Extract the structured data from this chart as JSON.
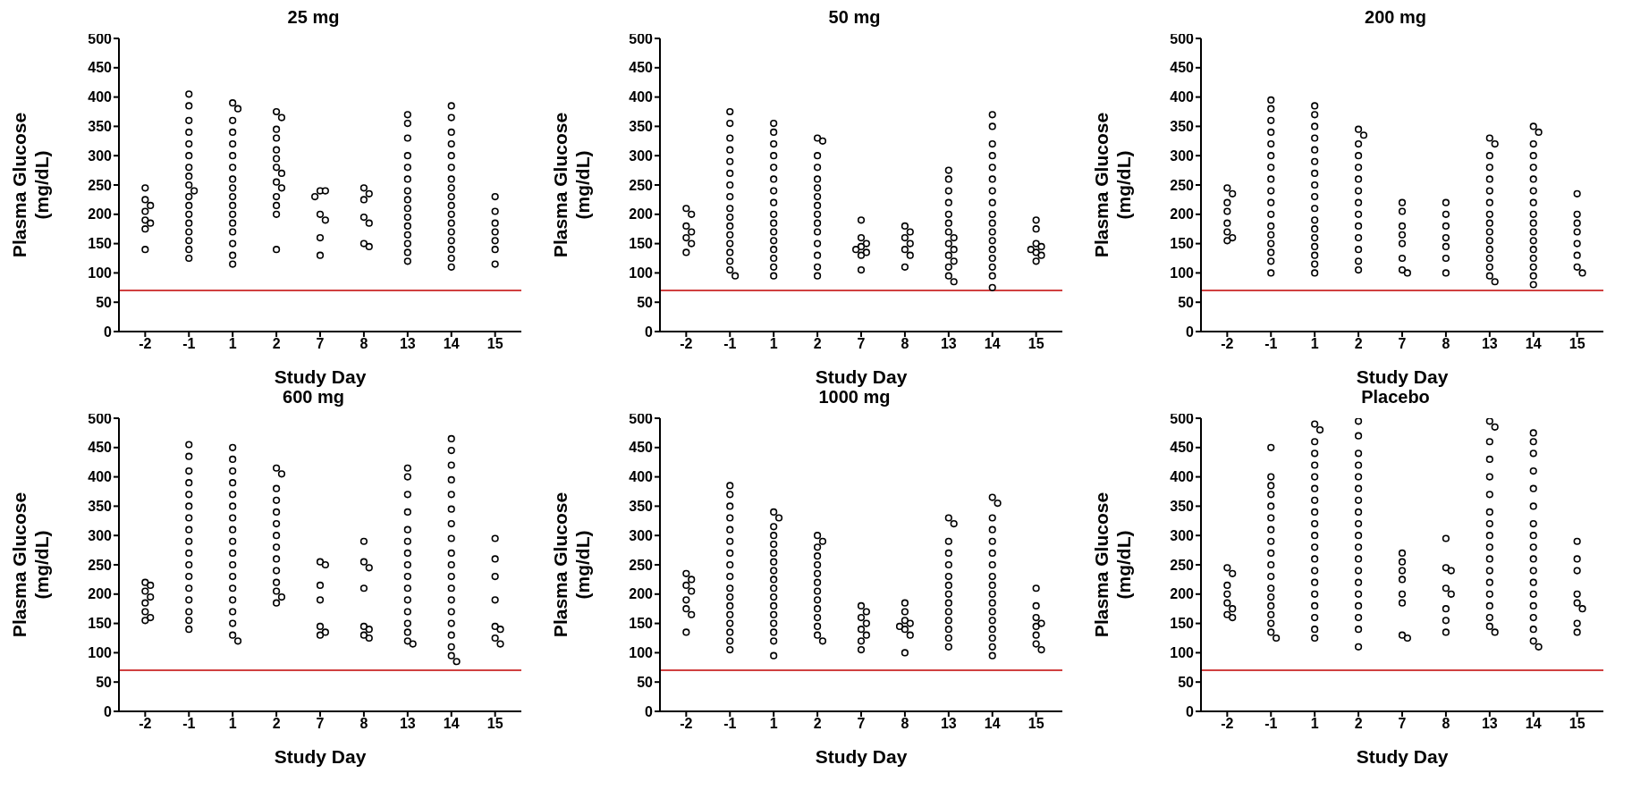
{
  "chart_data": [
    {
      "type": "scatter",
      "title": "25 mg",
      "xlabel": "Study Day",
      "ylabel": "Plasma Glucose (mg/dL)",
      "categories": [
        "-2",
        "-1",
        "1",
        "2",
        "7",
        "8",
        "13",
        "14",
        "15"
      ],
      "ylim": [
        0,
        500
      ],
      "yticks": [
        0,
        50,
        100,
        150,
        200,
        250,
        300,
        350,
        400,
        450,
        500
      ],
      "marker": "circle",
      "ref_lines": [
        {
          "axis": "y",
          "value": 70,
          "color": "#c00000"
        }
      ],
      "series": [
        {
          "color": "#000000",
          "x": [
            "-2",
            "-2",
            "-2",
            "-2",
            "-2",
            "-2",
            "-2",
            "-2"
          ],
          "values": [
            245,
            225,
            215,
            205,
            190,
            185,
            175,
            140
          ]
        },
        {
          "color": "#000000",
          "x": [
            "-1",
            "-1",
            "-1",
            "-1",
            "-1",
            "-1",
            "-1",
            "-1",
            "-1",
            "-1",
            "-1",
            "-1",
            "-1",
            "-1",
            "-1",
            "-1",
            "-1",
            "-1"
          ],
          "values": [
            405,
            385,
            360,
            340,
            320,
            300,
            280,
            265,
            250,
            240,
            230,
            215,
            200,
            185,
            170,
            155,
            140,
            125
          ]
        },
        {
          "color": "#000000",
          "x": [
            "1",
            "1",
            "1",
            "1",
            "1",
            "1",
            "1",
            "1",
            "1",
            "1",
            "1",
            "1",
            "1",
            "1",
            "1",
            "1",
            "1"
          ],
          "values": [
            390,
            380,
            360,
            340,
            320,
            300,
            280,
            260,
            245,
            230,
            215,
            200,
            185,
            170,
            150,
            130,
            115
          ]
        },
        {
          "color": "#000000",
          "x": [
            "2",
            "2",
            "2",
            "2",
            "2",
            "2",
            "2",
            "2",
            "2",
            "2",
            "2",
            "2",
            "2",
            "2"
          ],
          "values": [
            375,
            365,
            345,
            330,
            310,
            295,
            280,
            270,
            255,
            245,
            230,
            215,
            200,
            140
          ]
        },
        {
          "color": "#000000",
          "x": [
            "7",
            "7",
            "7",
            "7",
            "7",
            "7",
            "7"
          ],
          "values": [
            240,
            240,
            230,
            200,
            190,
            160,
            130
          ]
        },
        {
          "color": "#000000",
          "x": [
            "8",
            "8",
            "8",
            "8",
            "8",
            "8",
            "8"
          ],
          "values": [
            245,
            235,
            225,
            195,
            185,
            150,
            145
          ]
        },
        {
          "color": "#000000",
          "x": [
            "13",
            "13",
            "13",
            "13",
            "13",
            "13",
            "13",
            "13",
            "13",
            "13",
            "13",
            "13",
            "13",
            "13",
            "13"
          ],
          "values": [
            370,
            355,
            330,
            300,
            280,
            260,
            240,
            225,
            210,
            195,
            180,
            165,
            150,
            135,
            120
          ]
        },
        {
          "color": "#000000",
          "x": [
            "14",
            "14",
            "14",
            "14",
            "14",
            "14",
            "14",
            "14",
            "14",
            "14",
            "14",
            "14",
            "14",
            "14",
            "14",
            "14",
            "14"
          ],
          "values": [
            385,
            365,
            340,
            320,
            300,
            280,
            260,
            245,
            230,
            215,
            200,
            185,
            170,
            155,
            140,
            125,
            110
          ]
        },
        {
          "color": "#000000",
          "x": [
            "15",
            "15",
            "15",
            "15",
            "15",
            "15",
            "15"
          ],
          "values": [
            230,
            205,
            185,
            170,
            155,
            140,
            115
          ]
        }
      ]
    },
    {
      "type": "scatter",
      "title": "50 mg",
      "xlabel": "Study Day",
      "ylabel": "Plasma Glucose (mg/dL)",
      "categories": [
        "-2",
        "-1",
        "1",
        "2",
        "7",
        "8",
        "13",
        "14",
        "15"
      ],
      "ylim": [
        0,
        500
      ],
      "yticks": [
        0,
        50,
        100,
        150,
        200,
        250,
        300,
        350,
        400,
        450,
        500
      ],
      "marker": "circle",
      "ref_lines": [
        {
          "axis": "y",
          "value": 70,
          "color": "#c00000"
        }
      ],
      "series": [
        {
          "color": "#000000",
          "x": [
            "-2",
            "-2",
            "-2",
            "-2",
            "-2",
            "-2",
            "-2"
          ],
          "values": [
            210,
            200,
            180,
            170,
            160,
            150,
            135
          ]
        },
        {
          "color": "#000000",
          "x": [
            "-1",
            "-1",
            "-1",
            "-1",
            "-1",
            "-1",
            "-1",
            "-1",
            "-1",
            "-1",
            "-1",
            "-1",
            "-1",
            "-1",
            "-1",
            "-1",
            "-1"
          ],
          "values": [
            375,
            355,
            330,
            310,
            290,
            270,
            250,
            230,
            210,
            195,
            180,
            165,
            150,
            135,
            120,
            105,
            95
          ]
        },
        {
          "color": "#000000",
          "x": [
            "1",
            "1",
            "1",
            "1",
            "1",
            "1",
            "1",
            "1",
            "1",
            "1",
            "1",
            "1",
            "1",
            "1",
            "1",
            "1"
          ],
          "values": [
            355,
            340,
            320,
            300,
            280,
            260,
            240,
            220,
            200,
            185,
            170,
            155,
            140,
            125,
            110,
            95
          ]
        },
        {
          "color": "#000000",
          "x": [
            "2",
            "2",
            "2",
            "2",
            "2",
            "2",
            "2",
            "2",
            "2",
            "2",
            "2",
            "2",
            "2",
            "2",
            "2"
          ],
          "values": [
            330,
            325,
            300,
            280,
            260,
            245,
            230,
            215,
            200,
            185,
            170,
            150,
            130,
            110,
            95
          ]
        },
        {
          "color": "#000000",
          "x": [
            "7",
            "7",
            "7",
            "7",
            "7",
            "7",
            "7",
            "7"
          ],
          "values": [
            190,
            160,
            150,
            145,
            140,
            135,
            130,
            105
          ]
        },
        {
          "color": "#000000",
          "x": [
            "8",
            "8",
            "8",
            "8",
            "8",
            "8",
            "8"
          ],
          "values": [
            180,
            170,
            160,
            150,
            140,
            130,
            110
          ]
        },
        {
          "color": "#000000",
          "x": [
            "13",
            "13",
            "13",
            "13",
            "13",
            "13",
            "13",
            "13",
            "13",
            "13",
            "13",
            "13",
            "13",
            "13",
            "13"
          ],
          "values": [
            275,
            260,
            240,
            220,
            200,
            185,
            170,
            160,
            150,
            140,
            130,
            120,
            110,
            95,
            85
          ]
        },
        {
          "color": "#000000",
          "x": [
            "14",
            "14",
            "14",
            "14",
            "14",
            "14",
            "14",
            "14",
            "14",
            "14",
            "14",
            "14",
            "14",
            "14",
            "14",
            "14",
            "14"
          ],
          "values": [
            370,
            350,
            320,
            300,
            280,
            260,
            240,
            220,
            200,
            185,
            170,
            155,
            140,
            125,
            110,
            95,
            75
          ]
        },
        {
          "color": "#000000",
          "x": [
            "15",
            "15",
            "15",
            "15",
            "15",
            "15",
            "15",
            "15"
          ],
          "values": [
            190,
            175,
            150,
            145,
            140,
            135,
            130,
            120
          ]
        }
      ]
    },
    {
      "type": "scatter",
      "title": "200 mg",
      "xlabel": "Study Day",
      "ylabel": "Plasma Glucose (mg/dL)",
      "categories": [
        "-2",
        "-1",
        "1",
        "2",
        "7",
        "8",
        "13",
        "14",
        "15"
      ],
      "ylim": [
        0,
        500
      ],
      "yticks": [
        0,
        50,
        100,
        150,
        200,
        250,
        300,
        350,
        400,
        450,
        500
      ],
      "marker": "circle",
      "ref_lines": [
        {
          "axis": "y",
          "value": 70,
          "color": "#c00000"
        }
      ],
      "series": [
        {
          "color": "#000000",
          "x": [
            "-2",
            "-2",
            "-2",
            "-2",
            "-2",
            "-2",
            "-2",
            "-2"
          ],
          "values": [
            245,
            235,
            220,
            205,
            185,
            170,
            160,
            155
          ]
        },
        {
          "color": "#000000",
          "x": [
            "-1",
            "-1",
            "-1",
            "-1",
            "-1",
            "-1",
            "-1",
            "-1",
            "-1",
            "-1",
            "-1",
            "-1",
            "-1",
            "-1",
            "-1",
            "-1",
            "-1"
          ],
          "values": [
            395,
            380,
            360,
            340,
            320,
            300,
            280,
            260,
            240,
            220,
            200,
            180,
            165,
            150,
            135,
            120,
            100
          ]
        },
        {
          "color": "#000000",
          "x": [
            "1",
            "1",
            "1",
            "1",
            "1",
            "1",
            "1",
            "1",
            "1",
            "1",
            "1",
            "1",
            "1",
            "1",
            "1",
            "1",
            "1"
          ],
          "values": [
            385,
            370,
            350,
            330,
            310,
            290,
            270,
            250,
            230,
            210,
            190,
            175,
            160,
            145,
            130,
            115,
            100
          ]
        },
        {
          "color": "#000000",
          "x": [
            "2",
            "2",
            "2",
            "2",
            "2",
            "2",
            "2",
            "2",
            "2",
            "2",
            "2",
            "2",
            "2",
            "2"
          ],
          "values": [
            345,
            335,
            320,
            300,
            280,
            260,
            240,
            220,
            200,
            180,
            160,
            140,
            120,
            105
          ]
        },
        {
          "color": "#000000",
          "x": [
            "7",
            "7",
            "7",
            "7",
            "7",
            "7",
            "7",
            "7"
          ],
          "values": [
            220,
            205,
            180,
            165,
            150,
            125,
            105,
            100
          ]
        },
        {
          "color": "#000000",
          "x": [
            "8",
            "8",
            "8",
            "8",
            "8",
            "8",
            "8"
          ],
          "values": [
            220,
            200,
            180,
            160,
            145,
            125,
            100
          ]
        },
        {
          "color": "#000000",
          "x": [
            "13",
            "13",
            "13",
            "13",
            "13",
            "13",
            "13",
            "13",
            "13",
            "13",
            "13",
            "13",
            "13",
            "13",
            "13",
            "13"
          ],
          "values": [
            330,
            320,
            300,
            280,
            260,
            240,
            220,
            200,
            185,
            170,
            155,
            140,
            125,
            110,
            95,
            85
          ]
        },
        {
          "color": "#000000",
          "x": [
            "14",
            "14",
            "14",
            "14",
            "14",
            "14",
            "14",
            "14",
            "14",
            "14",
            "14",
            "14",
            "14",
            "14",
            "14",
            "14",
            "14"
          ],
          "values": [
            350,
            340,
            320,
            300,
            280,
            260,
            240,
            220,
            200,
            185,
            170,
            155,
            140,
            125,
            110,
            95,
            80
          ]
        },
        {
          "color": "#000000",
          "x": [
            "15",
            "15",
            "15",
            "15",
            "15",
            "15",
            "15",
            "15"
          ],
          "values": [
            235,
            200,
            185,
            170,
            150,
            130,
            110,
            100
          ]
        }
      ]
    },
    {
      "type": "scatter",
      "title": "600 mg",
      "xlabel": "Study Day",
      "ylabel": "Plasma Glucose (mg/dL)",
      "categories": [
        "-2",
        "-1",
        "1",
        "2",
        "7",
        "8",
        "13",
        "14",
        "15"
      ],
      "ylim": [
        0,
        500
      ],
      "yticks": [
        0,
        50,
        100,
        150,
        200,
        250,
        300,
        350,
        400,
        450,
        500
      ],
      "marker": "circle",
      "ref_lines": [
        {
          "axis": "y",
          "value": 70,
          "color": "#c00000"
        }
      ],
      "series": [
        {
          "color": "#000000",
          "x": [
            "-2",
            "-2",
            "-2",
            "-2",
            "-2",
            "-2",
            "-2",
            "-2"
          ],
          "values": [
            220,
            215,
            205,
            195,
            185,
            170,
            160,
            155
          ]
        },
        {
          "color": "#000000",
          "x": [
            "-1",
            "-1",
            "-1",
            "-1",
            "-1",
            "-1",
            "-1",
            "-1",
            "-1",
            "-1",
            "-1",
            "-1",
            "-1",
            "-1",
            "-1",
            "-1",
            "-1"
          ],
          "values": [
            455,
            435,
            410,
            390,
            370,
            350,
            330,
            310,
            290,
            270,
            250,
            230,
            210,
            190,
            170,
            155,
            140
          ]
        },
        {
          "color": "#000000",
          "x": [
            "1",
            "1",
            "1",
            "1",
            "1",
            "1",
            "1",
            "1",
            "1",
            "1",
            "1",
            "1",
            "1",
            "1",
            "1",
            "1",
            "1",
            "1"
          ],
          "values": [
            450,
            430,
            410,
            390,
            370,
            350,
            330,
            310,
            290,
            270,
            250,
            230,
            210,
            190,
            170,
            150,
            130,
            120
          ]
        },
        {
          "color": "#000000",
          "x": [
            "2",
            "2",
            "2",
            "2",
            "2",
            "2",
            "2",
            "2",
            "2",
            "2",
            "2",
            "2",
            "2",
            "2"
          ],
          "values": [
            415,
            405,
            380,
            360,
            340,
            320,
            300,
            280,
            260,
            240,
            220,
            205,
            195,
            185
          ]
        },
        {
          "color": "#000000",
          "x": [
            "7",
            "7",
            "7",
            "7",
            "7",
            "7",
            "7"
          ],
          "values": [
            255,
            250,
            215,
            190,
            145,
            135,
            130
          ]
        },
        {
          "color": "#000000",
          "x": [
            "8",
            "8",
            "8",
            "8",
            "8",
            "8",
            "8",
            "8"
          ],
          "values": [
            290,
            255,
            245,
            210,
            145,
            140,
            130,
            125
          ]
        },
        {
          "color": "#000000",
          "x": [
            "13",
            "13",
            "13",
            "13",
            "13",
            "13",
            "13",
            "13",
            "13",
            "13",
            "13",
            "13",
            "13",
            "13",
            "13",
            "13"
          ],
          "values": [
            415,
            400,
            370,
            340,
            310,
            290,
            270,
            250,
            230,
            210,
            190,
            170,
            150,
            135,
            120,
            115
          ]
        },
        {
          "color": "#000000",
          "x": [
            "14",
            "14",
            "14",
            "14",
            "14",
            "14",
            "14",
            "14",
            "14",
            "14",
            "14",
            "14",
            "14",
            "14",
            "14",
            "14",
            "14",
            "14",
            "14"
          ],
          "values": [
            465,
            445,
            420,
            395,
            370,
            345,
            320,
            295,
            270,
            250,
            230,
            210,
            190,
            170,
            150,
            130,
            110,
            95,
            85
          ]
        },
        {
          "color": "#000000",
          "x": [
            "15",
            "15",
            "15",
            "15",
            "15",
            "15",
            "15",
            "15"
          ],
          "values": [
            295,
            260,
            230,
            190,
            145,
            140,
            125,
            115
          ]
        }
      ]
    },
    {
      "type": "scatter",
      "title": "1000 mg",
      "xlabel": "Study Day",
      "ylabel": "Plasma Glucose (mg/dL)",
      "categories": [
        "-2",
        "-1",
        "1",
        "2",
        "7",
        "8",
        "13",
        "14",
        "15"
      ],
      "ylim": [
        0,
        500
      ],
      "yticks": [
        0,
        50,
        100,
        150,
        200,
        250,
        300,
        350,
        400,
        450,
        500
      ],
      "marker": "circle",
      "ref_lines": [
        {
          "axis": "y",
          "value": 70,
          "color": "#c00000"
        }
      ],
      "series": [
        {
          "color": "#000000",
          "x": [
            "-2",
            "-2",
            "-2",
            "-2",
            "-2",
            "-2",
            "-2",
            "-2"
          ],
          "values": [
            235,
            225,
            215,
            205,
            190,
            175,
            165,
            135
          ]
        },
        {
          "color": "#000000",
          "x": [
            "-1",
            "-1",
            "-1",
            "-1",
            "-1",
            "-1",
            "-1",
            "-1",
            "-1",
            "-1",
            "-1",
            "-1",
            "-1",
            "-1",
            "-1",
            "-1",
            "-1"
          ],
          "values": [
            385,
            370,
            350,
            330,
            310,
            290,
            270,
            250,
            230,
            210,
            195,
            180,
            165,
            150,
            135,
            120,
            105
          ]
        },
        {
          "color": "#000000",
          "x": [
            "1",
            "1",
            "1",
            "1",
            "1",
            "1",
            "1",
            "1",
            "1",
            "1",
            "1",
            "1",
            "1",
            "1",
            "1",
            "1",
            "1"
          ],
          "values": [
            340,
            330,
            315,
            300,
            285,
            270,
            255,
            240,
            225,
            210,
            195,
            180,
            165,
            150,
            135,
            120,
            95
          ]
        },
        {
          "color": "#000000",
          "x": [
            "2",
            "2",
            "2",
            "2",
            "2",
            "2",
            "2",
            "2",
            "2",
            "2",
            "2",
            "2",
            "2",
            "2"
          ],
          "values": [
            300,
            290,
            280,
            265,
            250,
            235,
            220,
            205,
            190,
            175,
            160,
            145,
            130,
            120
          ]
        },
        {
          "color": "#000000",
          "x": [
            "7",
            "7",
            "7",
            "7",
            "7",
            "7",
            "7",
            "7"
          ],
          "values": [
            180,
            170,
            160,
            150,
            140,
            130,
            120,
            105
          ]
        },
        {
          "color": "#000000",
          "x": [
            "8",
            "8",
            "8",
            "8",
            "8",
            "8",
            "8",
            "8"
          ],
          "values": [
            185,
            170,
            155,
            150,
            145,
            140,
            130,
            100
          ]
        },
        {
          "color": "#000000",
          "x": [
            "13",
            "13",
            "13",
            "13",
            "13",
            "13",
            "13",
            "13",
            "13",
            "13",
            "13",
            "13",
            "13",
            "13"
          ],
          "values": [
            330,
            320,
            290,
            270,
            250,
            230,
            215,
            200,
            185,
            170,
            155,
            140,
            125,
            110
          ]
        },
        {
          "color": "#000000",
          "x": [
            "14",
            "14",
            "14",
            "14",
            "14",
            "14",
            "14",
            "14",
            "14",
            "14",
            "14",
            "14",
            "14",
            "14",
            "14",
            "14",
            "14"
          ],
          "values": [
            365,
            355,
            330,
            310,
            290,
            270,
            250,
            230,
            215,
            200,
            185,
            170,
            155,
            140,
            125,
            110,
            95
          ]
        },
        {
          "color": "#000000",
          "x": [
            "15",
            "15",
            "15",
            "15",
            "15",
            "15",
            "15",
            "15"
          ],
          "values": [
            210,
            180,
            160,
            150,
            145,
            130,
            115,
            105
          ]
        }
      ]
    },
    {
      "type": "scatter",
      "title": "Placebo",
      "xlabel": "Study Day",
      "ylabel": "Plasma Glucose (mg/dL)",
      "categories": [
        "-2",
        "-1",
        "1",
        "2",
        "7",
        "8",
        "13",
        "14",
        "15"
      ],
      "ylim": [
        0,
        500
      ],
      "yticks": [
        0,
        50,
        100,
        150,
        200,
        250,
        300,
        350,
        400,
        450,
        500
      ],
      "marker": "circle",
      "ref_lines": [
        {
          "axis": "y",
          "value": 70,
          "color": "#c00000"
        }
      ],
      "series": [
        {
          "color": "#000000",
          "x": [
            "-2",
            "-2",
            "-2",
            "-2",
            "-2",
            "-2",
            "-2",
            "-2"
          ],
          "values": [
            245,
            235,
            215,
            200,
            185,
            175,
            165,
            160
          ]
        },
        {
          "color": "#000000",
          "x": [
            "-1",
            "-1",
            "-1",
            "-1",
            "-1",
            "-1",
            "-1",
            "-1",
            "-1",
            "-1",
            "-1",
            "-1",
            "-1",
            "-1",
            "-1",
            "-1",
            "-1",
            "-1"
          ],
          "values": [
            450,
            400,
            385,
            370,
            350,
            330,
            310,
            290,
            270,
            250,
            230,
            210,
            195,
            180,
            165,
            150,
            135,
            125
          ]
        },
        {
          "color": "#000000",
          "x": [
            "1",
            "1",
            "1",
            "1",
            "1",
            "1",
            "1",
            "1",
            "1",
            "1",
            "1",
            "1",
            "1",
            "1",
            "1",
            "1",
            "1",
            "1",
            "1",
            "1"
          ],
          "values": [
            490,
            480,
            460,
            440,
            420,
            400,
            380,
            360,
            340,
            320,
            300,
            280,
            260,
            240,
            220,
            200,
            180,
            160,
            140,
            125
          ]
        },
        {
          "color": "#000000",
          "x": [
            "2",
            "2",
            "2",
            "2",
            "2",
            "2",
            "2",
            "2",
            "2",
            "2",
            "2",
            "2",
            "2",
            "2",
            "2",
            "2",
            "2",
            "2",
            "2"
          ],
          "values": [
            495,
            470,
            440,
            420,
            400,
            380,
            360,
            340,
            320,
            300,
            280,
            260,
            240,
            220,
            200,
            180,
            160,
            140,
            110
          ]
        },
        {
          "color": "#000000",
          "x": [
            "7",
            "7",
            "7",
            "7",
            "7",
            "7",
            "7",
            "7"
          ],
          "values": [
            270,
            255,
            240,
            225,
            200,
            185,
            130,
            125
          ]
        },
        {
          "color": "#000000",
          "x": [
            "8",
            "8",
            "8",
            "8",
            "8",
            "8",
            "8",
            "8"
          ],
          "values": [
            295,
            245,
            240,
            210,
            200,
            175,
            155,
            135
          ]
        },
        {
          "color": "#000000",
          "x": [
            "13",
            "13",
            "13",
            "13",
            "13",
            "13",
            "13",
            "13",
            "13",
            "13",
            "13",
            "13",
            "13",
            "13",
            "13",
            "13",
            "13",
            "13"
          ],
          "values": [
            495,
            485,
            460,
            430,
            400,
            370,
            340,
            320,
            300,
            280,
            260,
            240,
            220,
            200,
            180,
            160,
            145,
            135
          ]
        },
        {
          "color": "#000000",
          "x": [
            "14",
            "14",
            "14",
            "14",
            "14",
            "14",
            "14",
            "14",
            "14",
            "14",
            "14",
            "14",
            "14",
            "14",
            "14",
            "14",
            "14",
            "14"
          ],
          "values": [
            475,
            460,
            440,
            410,
            380,
            350,
            320,
            300,
            280,
            260,
            240,
            220,
            200,
            180,
            160,
            140,
            120,
            110
          ]
        },
        {
          "color": "#000000",
          "x": [
            "15",
            "15",
            "15",
            "15",
            "15",
            "15",
            "15",
            "15"
          ],
          "values": [
            290,
            260,
            240,
            200,
            185,
            175,
            150,
            135
          ]
        }
      ]
    }
  ]
}
